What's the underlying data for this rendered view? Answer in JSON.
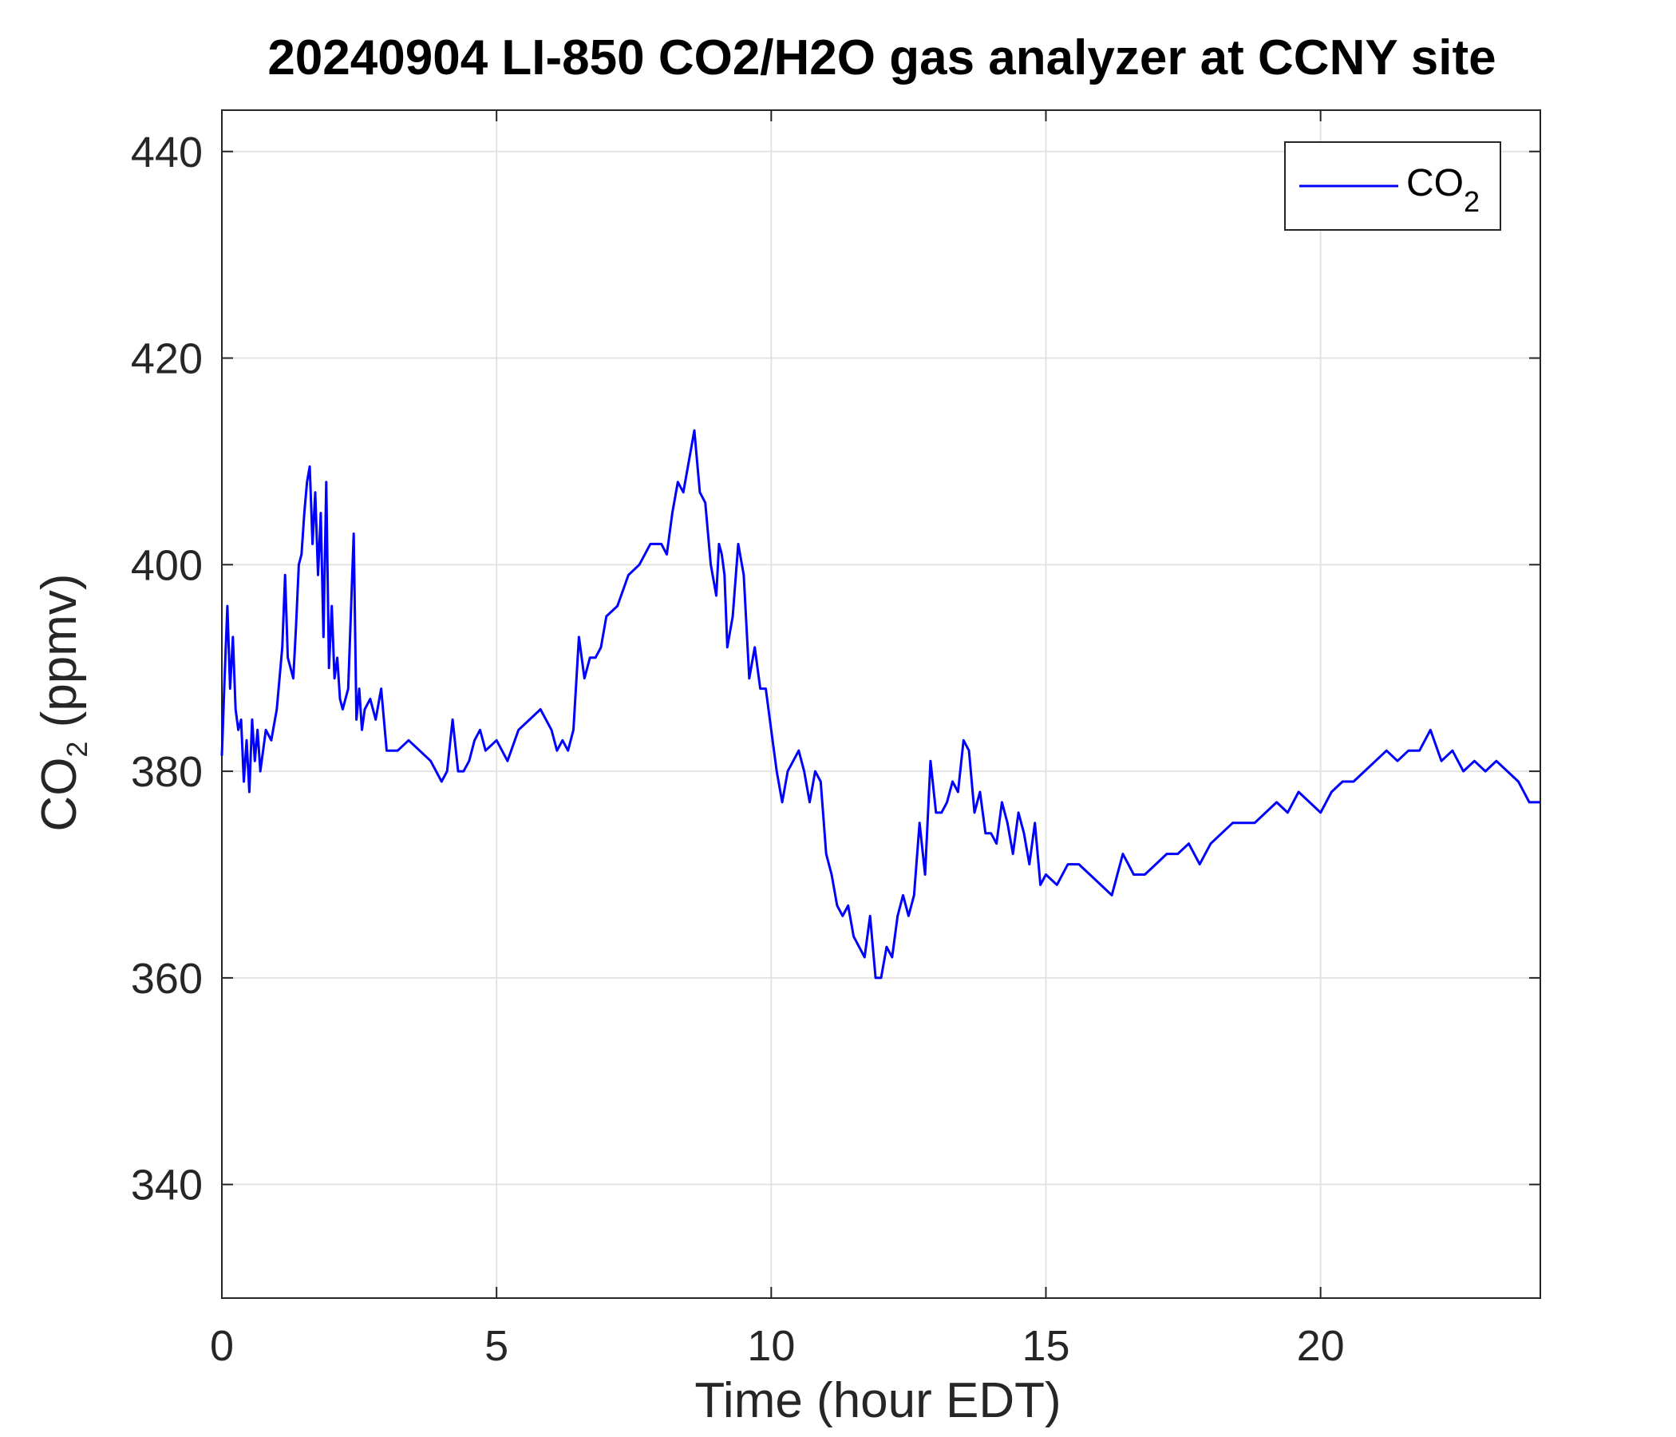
{
  "chart_data": {
    "type": "line",
    "title": "20240904 LI-850 CO2/H2O gas analyzer at CCNY site",
    "xlabel": "Time (hour EDT)",
    "ylabel": {
      "pre": "CO",
      "sub": "2",
      "post": " (ppmv)"
    },
    "xlim": [
      0,
      24
    ],
    "ylim": [
      329,
      444
    ],
    "xticks": [
      0,
      5,
      10,
      15,
      20
    ],
    "yticks": [
      340,
      360,
      380,
      400,
      420,
      440
    ],
    "grid": true,
    "legend_position": "top-right",
    "colors": {
      "series": "#0000ff",
      "axes": "#262626",
      "grid": "#e3e3e3"
    },
    "series": [
      {
        "name": {
          "pre": "CO",
          "sub": "2"
        },
        "x": [
          0,
          0.05,
          0.1,
          0.15,
          0.2,
          0.25,
          0.3,
          0.35,
          0.4,
          0.45,
          0.5,
          0.55,
          0.6,
          0.65,
          0.7,
          0.8,
          0.9,
          1.0,
          1.1,
          1.15,
          1.2,
          1.3,
          1.35,
          1.4,
          1.45,
          1.5,
          1.55,
          1.6,
          1.65,
          1.7,
          1.75,
          1.8,
          1.85,
          1.9,
          1.95,
          2.0,
          2.05,
          2.1,
          2.15,
          2.2,
          2.3,
          2.4,
          2.45,
          2.5,
          2.55,
          2.6,
          2.7,
          2.8,
          2.9,
          3.0,
          3.2,
          3.4,
          3.6,
          3.8,
          4.0,
          4.1,
          4.2,
          4.3,
          4.4,
          4.5,
          4.6,
          4.7,
          4.8,
          5.0,
          5.2,
          5.4,
          5.6,
          5.8,
          6.0,
          6.1,
          6.2,
          6.3,
          6.4,
          6.5,
          6.6,
          6.7,
          6.8,
          6.9,
          7.0,
          7.2,
          7.4,
          7.6,
          7.8,
          8.0,
          8.1,
          8.2,
          8.3,
          8.4,
          8.5,
          8.6,
          8.7,
          8.8,
          8.9,
          9.0,
          9.05,
          9.1,
          9.15,
          9.2,
          9.3,
          9.4,
          9.5,
          9.6,
          9.7,
          9.8,
          9.9,
          10.0,
          10.1,
          10.2,
          10.3,
          10.4,
          10.5,
          10.6,
          10.7,
          10.8,
          10.9,
          11.0,
          11.1,
          11.2,
          11.3,
          11.4,
          11.5,
          11.6,
          11.7,
          11.8,
          11.9,
          12.0,
          12.1,
          12.2,
          12.3,
          12.4,
          12.5,
          12.6,
          12.7,
          12.8,
          12.9,
          13.0,
          13.1,
          13.2,
          13.3,
          13.4,
          13.5,
          13.6,
          13.7,
          13.8,
          13.9,
          14.0,
          14.1,
          14.2,
          14.3,
          14.4,
          14.5,
          14.6,
          14.7,
          14.8,
          14.9,
          15.0,
          15.2,
          15.4,
          15.6,
          15.8,
          16.0,
          16.2,
          16.4,
          16.6,
          16.8,
          17.0,
          17.2,
          17.4,
          17.6,
          17.8,
          18.0,
          18.2,
          18.4,
          18.6,
          18.8,
          19.0,
          19.2,
          19.4,
          19.6,
          19.8,
          20.0,
          20.2,
          20.4,
          20.6,
          20.8,
          21.0,
          21.2,
          21.4,
          21.6,
          21.8,
          22.0,
          22.2,
          22.4,
          22.6,
          22.8,
          23.0,
          23.2,
          23.4,
          23.6,
          23.8,
          24.0
        ],
        "y": [
          381.5,
          389,
          396,
          388,
          393,
          386,
          384,
          385,
          379,
          383,
          378,
          385,
          381,
          384,
          380,
          384,
          383,
          386,
          392,
          399,
          391,
          389,
          394,
          400,
          401,
          405,
          408,
          409.5,
          402,
          407,
          399,
          405,
          393,
          408,
          390,
          396,
          389,
          391,
          387,
          386,
          388,
          403,
          385,
          388,
          384,
          386,
          387,
          385,
          388,
          382,
          382,
          383,
          382,
          381,
          379,
          380,
          385,
          380,
          380,
          381,
          383,
          384,
          382,
          383,
          381,
          384,
          385,
          386,
          384,
          382,
          383,
          382,
          384,
          393,
          389,
          391,
          391,
          392,
          395,
          396,
          399,
          400,
          402,
          402,
          401,
          405,
          408,
          407,
          410,
          413,
          407,
          406,
          400,
          397,
          402,
          401,
          399,
          392,
          395,
          402,
          399,
          389,
          392,
          388,
          388,
          384,
          380,
          377,
          380,
          381,
          382,
          380,
          377,
          380,
          379,
          372,
          370,
          367,
          366,
          367,
          364,
          363,
          362,
          366,
          360,
          360,
          363,
          362,
          366,
          368,
          366,
          368,
          375,
          370,
          381,
          376,
          376,
          377,
          379,
          378,
          383,
          382,
          376,
          378,
          374,
          374,
          373,
          377,
          375,
          372,
          376,
          374,
          371,
          375,
          369,
          370,
          369,
          371,
          371,
          370,
          369,
          368,
          372,
          370,
          370,
          371,
          372,
          372,
          373,
          371,
          373,
          374,
          375,
          375,
          375,
          376,
          377,
          376,
          378,
          377,
          376,
          378,
          379,
          379,
          380,
          381,
          382,
          381,
          382,
          382,
          384,
          381,
          382,
          380,
          381,
          380,
          381,
          380,
          379,
          377,
          377
        ]
      }
    ]
  }
}
